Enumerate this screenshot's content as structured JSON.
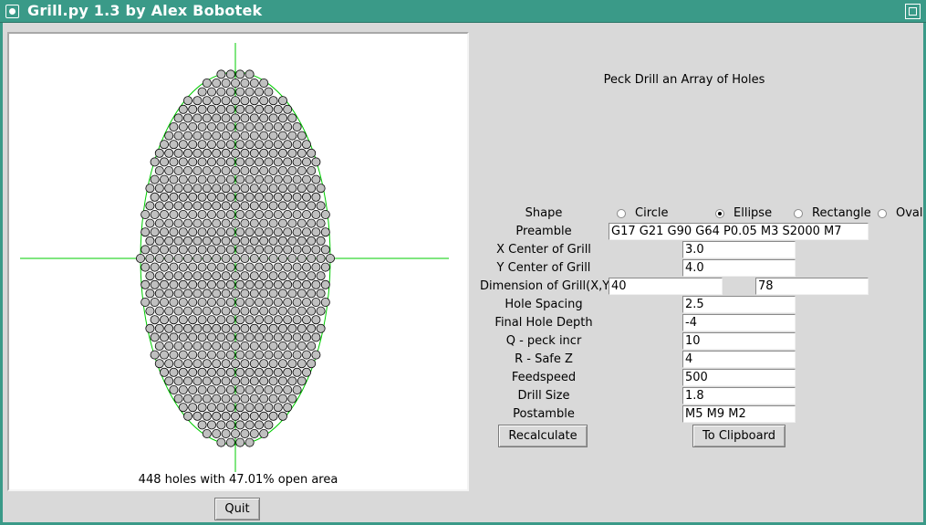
{
  "window": {
    "title": "Grill.py 1.3 by Alex Bobotek",
    "colors": {
      "titlebar": "#3a9a88",
      "guide_lines": "#00cc00",
      "hole_fill": "#c0c0c0"
    },
    "icons": [
      "app-icon",
      "maximize-icon"
    ]
  },
  "preview": {
    "summary": "448 holes with 47.01% open area"
  },
  "quit_label": "Quit",
  "form": {
    "heading": "Peck Drill an Array of Holes",
    "shape": {
      "label": "Shape",
      "selected": "Ellipse",
      "options": [
        "Circle",
        "Ellipse",
        "Rectangle",
        "Oval"
      ]
    },
    "preamble": {
      "label": "Preamble",
      "value": "G17 G21 G90 G64 P0.05 M3 S2000 M7"
    },
    "x_center": {
      "label": "X Center of Grill",
      "value": "3.0"
    },
    "y_center": {
      "label": "Y Center of Grill",
      "value": "4.0"
    },
    "dimension": {
      "label": "Dimension of Grill(X,Y)",
      "x": "40",
      "y": "78"
    },
    "hole_spacing": {
      "label": "Hole Spacing",
      "value": "2.5"
    },
    "final_depth": {
      "label": "Final Hole Depth",
      "value": "-4"
    },
    "peck_incr": {
      "label": "Q - peck incr",
      "value": "10"
    },
    "safe_z": {
      "label": "R - Safe Z",
      "value": "4"
    },
    "feedspeed": {
      "label": "Feedspeed",
      "value": "500"
    },
    "drill_size": {
      "label": "Drill Size",
      "value": "1.8"
    },
    "postamble": {
      "label": "Postamble",
      "value": "M5 M9 M2"
    },
    "recalc_label": "Recalculate",
    "clipboard_label": "To Clipboard"
  }
}
